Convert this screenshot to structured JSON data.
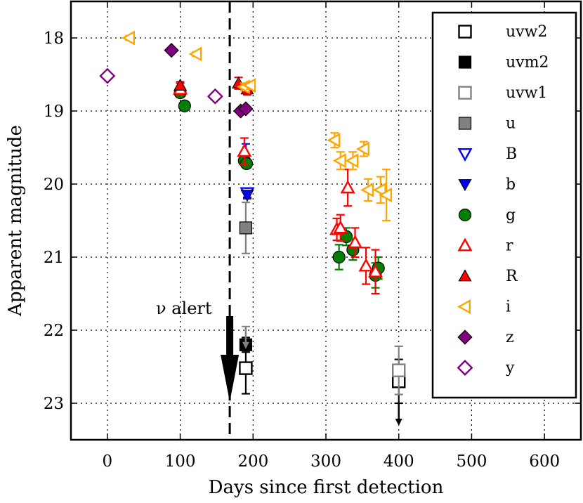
{
  "chart_data": {
    "type": "scatter",
    "title": "",
    "xlabel": "Days since first detection",
    "ylabel": "Apparent magnitude",
    "xlim": [
      -50,
      650
    ],
    "ylim": [
      23.5,
      17.5
    ],
    "y_inverted": true,
    "xticks": [
      0,
      100,
      200,
      300,
      400,
      500,
      600
    ],
    "yticks": [
      18,
      19,
      20,
      21,
      22,
      23
    ],
    "xtick_labels": [
      "0",
      "100",
      "200",
      "300",
      "400",
      "500",
      "600"
    ],
    "ytick_labels": [
      "18",
      "19",
      "20",
      "21",
      "22",
      "23"
    ],
    "grid": true,
    "legend_position": "right",
    "annotations": [
      {
        "text": "ν alert",
        "x": 168,
        "kind": "vertical-dashed-line-with-arrow"
      }
    ],
    "series": [
      {
        "name": "uvw2",
        "marker": "square-open",
        "color": "#000000",
        "points": [
          {
            "x": 190,
            "y": 22.52,
            "err": 0.35
          },
          {
            "x": 400,
            "y": 22.7,
            "err": 0.3
          }
        ]
      },
      {
        "name": "uvm2",
        "marker": "square-filled",
        "color": "#000000",
        "points": [
          {
            "x": 190,
            "y": 22.2,
            "err": 0.1
          }
        ],
        "upper_limits": [
          {
            "x": 400,
            "y": 23.0
          }
        ]
      },
      {
        "name": "uvw1",
        "marker": "square-open",
        "color": "#808080",
        "points": [
          {
            "x": 400,
            "y": 22.55,
            "err": 0.33
          }
        ],
        "upper_limits": [
          {
            "x": 190,
            "y": 21.95
          }
        ]
      },
      {
        "name": "u",
        "marker": "square-filled",
        "color": "#808080",
        "points": [
          {
            "x": 190,
            "y": 20.6,
            "err": 0.35
          }
        ]
      },
      {
        "name": "B",
        "marker": "triangle-down-open",
        "color": "#0000ff",
        "points": [
          {
            "x": 192,
            "y": 20.12,
            "err": 0.06
          }
        ]
      },
      {
        "name": "b",
        "marker": "triangle-down-filled",
        "color": "#0000ff",
        "points": [
          {
            "x": 192,
            "y": 20.15,
            "err": 0.05
          }
        ],
        "upper_limits": [
          {
            "x": 190,
            "y": 19.45
          }
        ]
      },
      {
        "name": "g",
        "marker": "circle-filled",
        "color": "#008000",
        "points": [
          {
            "x": 100,
            "y": 18.75,
            "err": 0.06
          },
          {
            "x": 106,
            "y": 18.93,
            "err": 0.05
          },
          {
            "x": 188,
            "y": 19.68,
            "err": 0.06
          },
          {
            "x": 191,
            "y": 19.72,
            "err": 0.06
          },
          {
            "x": 318,
            "y": 21.0,
            "err": 0.17
          },
          {
            "x": 328,
            "y": 20.72,
            "err": 0.12
          },
          {
            "x": 337,
            "y": 20.9,
            "err": 0.14
          },
          {
            "x": 368,
            "y": 21.25,
            "err": 0.17
          },
          {
            "x": 372,
            "y": 21.15,
            "err": 0.15
          }
        ]
      },
      {
        "name": "r",
        "marker": "triangle-up-open",
        "color": "#ff0000",
        "points": [
          {
            "x": 100,
            "y": 18.7,
            "err": 0.08
          },
          {
            "x": 188,
            "y": 19.55,
            "err": 0.18
          },
          {
            "x": 330,
            "y": 20.05,
            "err": 0.25
          },
          {
            "x": 315,
            "y": 20.62,
            "err": 0.15
          },
          {
            "x": 320,
            "y": 20.6,
            "err": 0.18
          },
          {
            "x": 340,
            "y": 20.8,
            "err": 0.2
          },
          {
            "x": 355,
            "y": 21.12,
            "err": 0.25
          },
          {
            "x": 368,
            "y": 21.2,
            "err": 0.3
          }
        ]
      },
      {
        "name": "R",
        "marker": "triangle-up-filled",
        "color": "#ff0000",
        "points": [
          {
            "x": 100,
            "y": 18.65,
            "err": 0.05
          },
          {
            "x": 180,
            "y": 18.62,
            "err": 0.08
          },
          {
            "x": 192,
            "y": 18.7,
            "err": 0.08
          }
        ]
      },
      {
        "name": "i",
        "marker": "triangle-left-open",
        "color": "#ffa500",
        "points": [
          {
            "x": 30,
            "y": 18.0,
            "err": 0.03
          },
          {
            "x": 122,
            "y": 18.22,
            "err": 0.03
          },
          {
            "x": 188,
            "y": 18.67,
            "err": 0.05
          },
          {
            "x": 196,
            "y": 18.65,
            "err": 0.05
          },
          {
            "x": 312,
            "y": 19.4,
            "err": 0.1
          },
          {
            "x": 320,
            "y": 19.68,
            "err": 0.12
          },
          {
            "x": 337,
            "y": 19.68,
            "err": 0.12
          },
          {
            "x": 352,
            "y": 19.52,
            "err": 0.1
          },
          {
            "x": 358,
            "y": 20.08,
            "err": 0.15
          },
          {
            "x": 375,
            "y": 20.08,
            "err": 0.18
          },
          {
            "x": 383,
            "y": 20.15,
            "err": 0.35
          }
        ]
      },
      {
        "name": "z",
        "marker": "diamond-filled",
        "color": "#800080",
        "points": [
          {
            "x": 88,
            "y": 18.17,
            "err": 0.02
          },
          {
            "x": 183,
            "y": 19.0,
            "err": 0.04
          },
          {
            "x": 190,
            "y": 18.97,
            "err": 0.04
          }
        ]
      },
      {
        "name": "y",
        "marker": "diamond-open",
        "color": "#800080",
        "points": [
          {
            "x": 0,
            "y": 18.52,
            "err": 0.03
          },
          {
            "x": 148,
            "y": 18.8,
            "err": 0.03
          }
        ]
      }
    ]
  }
}
